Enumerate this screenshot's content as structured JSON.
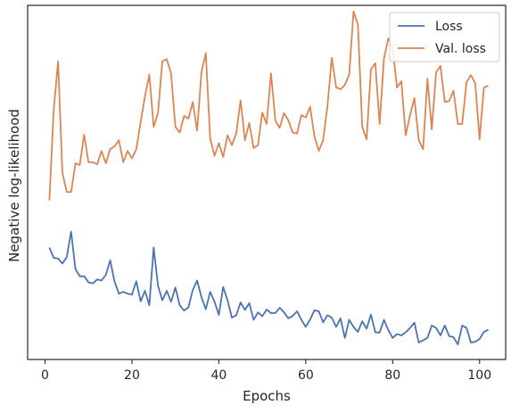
{
  "chart_data": {
    "type": "line",
    "title": "",
    "xlabel": "Epochs",
    "ylabel": "Negative log-likelihood",
    "xlim": [
      -4,
      106
    ],
    "ylim": [
      0,
      100
    ],
    "x_ticks": [
      0,
      20,
      40,
      60,
      80,
      100
    ],
    "y_ticks_shown": false,
    "grid": false,
    "legend_position": "top-right",
    "series": [
      {
        "name": "Loss",
        "color": "#4c72b0",
        "x": [
          1,
          2,
          3,
          4,
          5,
          6,
          7,
          8,
          9,
          10,
          11,
          12,
          13,
          14,
          15,
          16,
          17,
          18,
          19,
          20,
          21,
          22,
          23,
          24,
          25,
          26,
          27,
          28,
          29,
          30,
          31,
          32,
          33,
          34,
          35,
          36,
          37,
          38,
          39,
          40,
          41,
          42,
          43,
          44,
          45,
          46,
          47,
          48,
          49,
          50,
          51,
          52,
          53,
          54,
          55,
          56,
          57,
          58,
          59,
          60,
          61,
          62,
          63,
          64,
          65,
          66,
          67,
          68,
          69,
          70,
          71,
          72,
          73,
          74,
          75,
          76,
          77,
          78,
          79,
          80,
          81,
          82,
          83,
          84,
          85,
          86,
          87,
          88,
          89,
          90,
          91,
          92,
          93,
          94,
          95,
          96,
          97,
          98,
          99,
          100,
          101,
          102
        ],
        "values": [
          31.6,
          28.7,
          28.5,
          27.1,
          28.9,
          36.1,
          25.5,
          23.5,
          23.5,
          21.8,
          21.5,
          22.6,
          22.3,
          23.9,
          28.0,
          22.0,
          18.6,
          19.1,
          18.6,
          18.3,
          22.1,
          16.4,
          19.4,
          15.3,
          31.6,
          20.8,
          16.7,
          19.4,
          16.3,
          20.3,
          15.3,
          13.8,
          14.7,
          19.6,
          22.3,
          17.6,
          14.2,
          19.1,
          16.3,
          12.6,
          20.5,
          16.7,
          11.8,
          12.5,
          16.1,
          14.0,
          15.9,
          11.2,
          13.3,
          12.2,
          14.1,
          13.1,
          13.1,
          14.6,
          13.3,
          11.6,
          12.3,
          13.6,
          11.2,
          9.2,
          11.3,
          13.9,
          13.6,
          10.5,
          12.5,
          11.8,
          9.2,
          11.6,
          6.1,
          11.2,
          9.2,
          7.8,
          10.8,
          8.7,
          12.7,
          7.7,
          7.6,
          11.2,
          8.3,
          6.1,
          7.2,
          6.8,
          7.7,
          8.9,
          10.4,
          4.8,
          5.4,
          6.1,
          9.6,
          8.9,
          6.8,
          9.6,
          6.6,
          6.3,
          4.2,
          9.6,
          8.9,
          4.8,
          5.0,
          5.8,
          7.8,
          8.4
        ]
      },
      {
        "name": "Val. loss",
        "color": "#dd8452",
        "x": [
          1,
          2,
          3,
          4,
          5,
          6,
          7,
          8,
          9,
          10,
          11,
          12,
          13,
          14,
          15,
          16,
          17,
          18,
          19,
          20,
          21,
          22,
          23,
          24,
          25,
          26,
          27,
          28,
          29,
          30,
          31,
          32,
          33,
          34,
          35,
          36,
          37,
          38,
          39,
          40,
          41,
          42,
          43,
          44,
          45,
          46,
          47,
          48,
          49,
          50,
          51,
          52,
          53,
          54,
          55,
          56,
          57,
          58,
          59,
          60,
          61,
          62,
          63,
          64,
          65,
          66,
          67,
          68,
          69,
          70,
          71,
          72,
          73,
          74,
          75,
          76,
          77,
          78,
          79,
          80,
          81,
          82,
          83,
          84,
          85,
          86,
          87,
          88,
          89,
          90,
          91,
          92,
          93,
          94,
          95,
          96,
          97,
          98,
          99,
          100,
          101,
          102
        ],
        "values": [
          44.9,
          70.4,
          84.2,
          52.7,
          47.3,
          47.3,
          55.4,
          54.9,
          63.5,
          55.7,
          55.7,
          55.1,
          58.9,
          55.4,
          59.4,
          60.2,
          61.9,
          55.7,
          58.9,
          56.8,
          59.4,
          67.0,
          74.3,
          80.5,
          65.7,
          69.6,
          84.2,
          84.8,
          80.8,
          65.7,
          64.1,
          68.8,
          68.0,
          72.7,
          64.6,
          81.1,
          86.5,
          62.5,
          57.5,
          61.1,
          57.2,
          63.3,
          60.5,
          63.8,
          73.2,
          61.9,
          66.8,
          59.7,
          60.5,
          69.7,
          66.5,
          80.8,
          67.5,
          65.4,
          69.6,
          67.5,
          64.1,
          63.8,
          69.0,
          68.3,
          71.4,
          63.0,
          58.9,
          61.9,
          71.7,
          85.2,
          76.8,
          76.3,
          77.5,
          80.5,
          98.3,
          94.6,
          65.7,
          62.2,
          81.9,
          83.7,
          66.5,
          85.0,
          90.7,
          87.9,
          76.8,
          78.6,
          63.3,
          69.0,
          73.8,
          61.9,
          59.4,
          79.3,
          65.0,
          81.1,
          82.9,
          72.7,
          73.0,
          75.9,
          66.5,
          66.5,
          78.3,
          80.3,
          78.0,
          62.2,
          76.8,
          77.3
        ]
      }
    ]
  }
}
